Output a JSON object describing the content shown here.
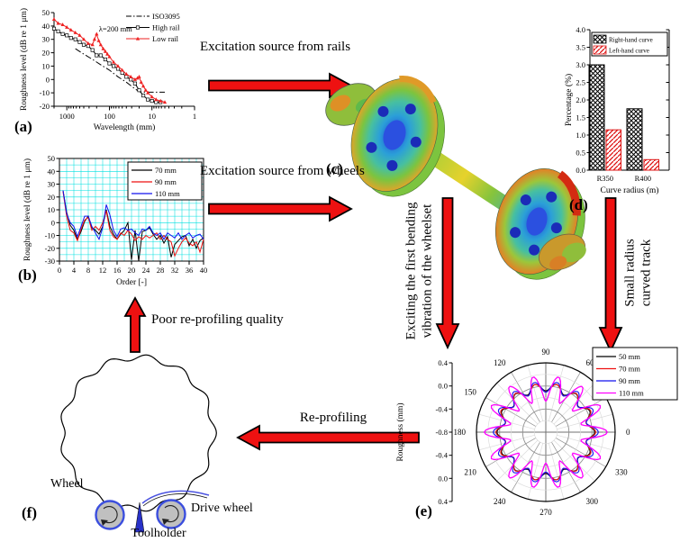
{
  "figure": {
    "background": "#ffffff",
    "arrow_color": "#ee1111",
    "panel_labels": {
      "a": "(a)",
      "b": "(b)",
      "c": "(c)",
      "d": "(d)",
      "e": "(e)",
      "f": "(f)"
    },
    "flow_labels": {
      "rails_line1": "Excitation source",
      "rails_line2": "from rails",
      "wheels_line1": "Excitation source",
      "wheels_line2": "from wheels",
      "bending_line1": "Exciting the first bending",
      "bending_line2": "vibration of the wheelset",
      "curve_line1": "Small radius",
      "curve_line2": "curved track",
      "reprofiling": "Re-profiling",
      "poor_line1": "Poor re-profiling",
      "poor_line2": "quality"
    },
    "wheel_diagram": {
      "wheel": "Wheel",
      "drive_wheel": "Drive wheel",
      "toolholder": "Toolholder"
    }
  },
  "chart_data": [
    {
      "id": "a",
      "type": "line",
      "xlabel": "Wavelength (mm)",
      "ylabel": "Roughness level (dB re 1 μm)",
      "x_scale": "log-reversed",
      "xlim": [
        2000,
        1
      ],
      "xticks": [
        1000,
        100,
        10,
        1
      ],
      "ylim": [
        -20,
        50
      ],
      "yticks": [
        -20,
        -10,
        0,
        10,
        20,
        30,
        40,
        50
      ],
      "annotation": "λ=200 mm",
      "legend_position": "top-right",
      "grid": false,
      "series": [
        {
          "name": "ISO3095",
          "color": "#000000",
          "style": "dashdot",
          "points": [
            [
              630,
              23
            ],
            [
              400,
              19
            ],
            [
              250,
              15
            ],
            [
              160,
              11
            ],
            [
              100,
              7
            ],
            [
              63,
              2
            ],
            [
              40,
              -2
            ],
            [
              25,
              -7
            ],
            [
              20,
              -9
            ],
            [
              14,
              -9.5
            ],
            [
              5,
              -9.5
            ]
          ]
        },
        {
          "name": "High rail",
          "color": "#000000",
          "marker": "square",
          "points": [
            [
              2000,
              38
            ],
            [
              1600,
              36
            ],
            [
              1250,
              34
            ],
            [
              1000,
              33
            ],
            [
              800,
              31
            ],
            [
              630,
              30
            ],
            [
              500,
              28
            ],
            [
              400,
              26
            ],
            [
              315,
              25
            ],
            [
              250,
              22
            ],
            [
              200,
              18
            ],
            [
              160,
              18
            ],
            [
              125,
              15
            ],
            [
              100,
              12
            ],
            [
              80,
              10
            ],
            [
              63,
              8
            ],
            [
              50,
              5
            ],
            [
              40,
              2
            ],
            [
              31.5,
              0
            ],
            [
              25,
              -3
            ],
            [
              20,
              -8
            ],
            [
              16,
              -12
            ],
            [
              12.5,
              -15
            ],
            [
              10,
              -16
            ],
            [
              8,
              -17
            ],
            [
              6.3,
              -17
            ]
          ]
        },
        {
          "name": "Low rail",
          "color": "#ee2222",
          "marker": "triangle",
          "points": [
            [
              2000,
              45
            ],
            [
              1600,
              42
            ],
            [
              1250,
              41
            ],
            [
              1000,
              39
            ],
            [
              800,
              37
            ],
            [
              630,
              35
            ],
            [
              500,
              33
            ],
            [
              400,
              30
            ],
            [
              315,
              27
            ],
            [
              250,
              26
            ],
            [
              224,
              30
            ],
            [
              200,
              34
            ],
            [
              178,
              29
            ],
            [
              160,
              26
            ],
            [
              140,
              23
            ],
            [
              125,
              21
            ],
            [
              112,
              19
            ],
            [
              100,
              17
            ],
            [
              80,
              13
            ],
            [
              63,
              10
            ],
            [
              50,
              7
            ],
            [
              40,
              4
            ],
            [
              31.5,
              2
            ],
            [
              25,
              0
            ],
            [
              22,
              1
            ],
            [
              20,
              2
            ],
            [
              18,
              -2
            ],
            [
              16,
              -5
            ],
            [
              14,
              -8
            ],
            [
              12.5,
              -10
            ],
            [
              10,
              -13
            ],
            [
              8,
              -15
            ],
            [
              6.3,
              -16
            ],
            [
              5,
              -17
            ]
          ]
        }
      ]
    },
    {
      "id": "b",
      "type": "line",
      "xlabel": "Order [-]",
      "ylabel": "Roughness level (dB re 1 μm)",
      "xlim": [
        0,
        40
      ],
      "xticks": [
        0,
        4,
        8,
        12,
        16,
        20,
        24,
        28,
        32,
        36,
        40
      ],
      "ylim": [
        -30,
        50
      ],
      "yticks": [
        -30,
        -20,
        -10,
        0,
        10,
        20,
        30,
        40,
        50
      ],
      "grid": true,
      "grid_color": "#00e0e0",
      "legend_position": "top-right",
      "x_start": 1,
      "series": [
        {
          "name": "70 mm",
          "color": "#000000",
          "values": [
            25,
            8,
            -2,
            -6,
            -13,
            -7,
            1,
            5,
            -4,
            -6,
            -9,
            -3,
            10,
            -3,
            -9,
            -13,
            -9,
            -6,
            0,
            -29,
            -6,
            -30,
            -7,
            -6,
            -4,
            -9,
            -13,
            -10,
            -16,
            -11,
            -27,
            -17,
            -14,
            -11,
            -10,
            -18,
            -13,
            -20,
            -14,
            -12
          ]
        },
        {
          "name": "90 mm",
          "color": "#ee1111",
          "values": [
            24,
            5,
            -6,
            -8,
            -14,
            -5,
            2,
            4,
            -6,
            -3,
            -6,
            0,
            9,
            -6,
            -11,
            -13,
            -8,
            -10,
            -6,
            -9,
            -14,
            -11,
            -13,
            -10,
            -12,
            -10,
            -8,
            -13,
            -10,
            -13,
            -15,
            -26,
            -20,
            -15,
            -12,
            -16,
            -18,
            -15,
            -23,
            -13
          ]
        },
        {
          "name": "110 mm",
          "color": "#1111ee",
          "values": [
            25,
            7,
            0,
            -3,
            -11,
            -3,
            5,
            5,
            -3,
            -8,
            -13,
            -4,
            14,
            6,
            -6,
            -11,
            -5,
            -4,
            -6,
            -5,
            -8,
            -10,
            -5,
            -6,
            -3,
            -8,
            -10,
            -8,
            -13,
            -8,
            -10,
            -12,
            -8,
            -13,
            -10,
            -8,
            -12,
            -10,
            -9,
            -13
          ]
        }
      ]
    },
    {
      "id": "d",
      "type": "bar",
      "xlabel": "Curve radius (m)",
      "ylabel": "Percentage (%)",
      "categories": [
        "R350",
        "R400"
      ],
      "ylim": [
        0,
        4
      ],
      "yticks": [
        0.0,
        0.5,
        1.0,
        1.5,
        2.0,
        2.5,
        3.0,
        3.5,
        4.0
      ],
      "legend_position": "top",
      "series": [
        {
          "name": "Right-hand curve",
          "values": [
            3.0,
            1.75
          ],
          "fill": "crosshatch-black",
          "edge": "#000000"
        },
        {
          "name": "Left-hand curve",
          "values": [
            1.15,
            0.3
          ],
          "fill": "hatch-red",
          "edge": "#dd1111"
        }
      ]
    },
    {
      "id": "e",
      "type": "polar-line",
      "ylabel": "Roughness (mm)",
      "radial_range": [
        -0.8,
        0.4
      ],
      "radial_ticks": [
        "0.4",
        "0.0",
        "-0.4",
        "-0.8",
        "-0.4",
        "0.0",
        "0.4"
      ],
      "ring_values_major": [
        -0.4,
        0.0
      ],
      "ring_values_minor": [
        -0.6,
        -0.2,
        0.2
      ],
      "angle_labels": [
        0,
        60,
        90,
        120,
        150,
        180,
        210,
        240,
        270,
        300,
        330
      ],
      "legend_position": "top-right",
      "series": [
        {
          "name": "50 mm",
          "color": "#000000",
          "base": -0.02,
          "amp": 0.065,
          "order": 14,
          "mod": 0.0
        },
        {
          "name": "70 mm",
          "color": "#ee1111",
          "base": -0.02,
          "amp": 0.075,
          "order": 14,
          "mod": 0.01
        },
        {
          "name": "90 mm",
          "color": "#1111ee",
          "base": 0.0,
          "amp": 0.095,
          "order": 14,
          "mod": 0.015
        },
        {
          "name": "110 mm",
          "color": "#ff00ff",
          "base": 0.0,
          "amp": 0.22,
          "order": 14,
          "mod": 0.045
        }
      ]
    }
  ]
}
